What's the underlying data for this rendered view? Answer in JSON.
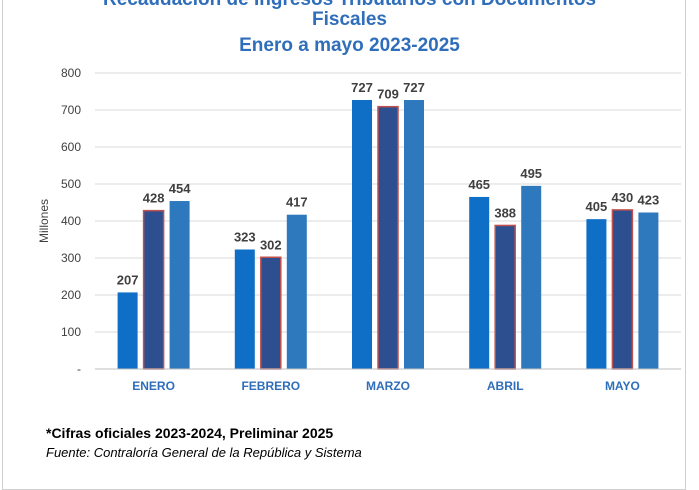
{
  "chart_data": {
    "type": "bar",
    "title_lines": [
      "Recaudación de Ingresos Tributarios con Documentos",
      "Fiscales",
      "Enero a mayo 2023-2025"
    ],
    "ylabel": "Millones",
    "yticks": [
      "-",
      "100",
      "200",
      "300",
      "400",
      "500",
      "600",
      "700",
      "800"
    ],
    "ylim": [
      0,
      800
    ],
    "categories": [
      "ENERO",
      "FEBRERO",
      "MARZO",
      "ABRIL",
      "MAYO"
    ],
    "series": [
      {
        "values": [
          207,
          323,
          727,
          465,
          405
        ],
        "color": "#0f6fc6"
      },
      {
        "values": [
          428,
          302,
          709,
          388,
          430
        ],
        "color": "#2e4f8f",
        "border": "#c0504d"
      },
      {
        "values": [
          454,
          417,
          727,
          495,
          423
        ],
        "color": "#2e79be"
      }
    ],
    "grid": true
  },
  "footer": {
    "note": "*Cifras oficiales 2023-2024, Preliminar 2025",
    "source": "Fuente: Contraloría General de la República y Sistema"
  }
}
